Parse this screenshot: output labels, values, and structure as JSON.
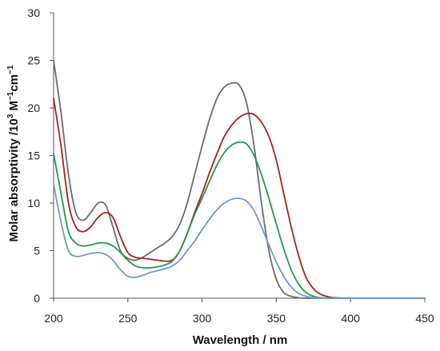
{
  "chart_data": {
    "type": "line",
    "xlabel": "Wavelength / nm",
    "ylabel_main": "Molar absorptivity /10",
    "ylabel_exp1": "3",
    "ylabel_unit1": " M",
    "ylabel_exp2": "−1",
    "ylabel_unit2": "cm",
    "ylabel_exp3": "−1",
    "xlim": [
      200,
      450
    ],
    "ylim": [
      0,
      30
    ],
    "xticks": [
      200,
      250,
      300,
      350,
      400,
      450
    ],
    "yticks": [
      0,
      5,
      10,
      15,
      20,
      25,
      30
    ],
    "series": [
      {
        "color": "#6b6b6b",
        "x": [
          200,
          205,
          210,
          215,
          220,
          225,
          230,
          235,
          240,
          245,
          250,
          255,
          260,
          265,
          270,
          275,
          280,
          285,
          290,
          295,
          300,
          305,
          310,
          315,
          320,
          325,
          330,
          335,
          340,
          345,
          350,
          355,
          360,
          365,
          370,
          375,
          380,
          390,
          400,
          420,
          450
        ],
        "y": [
          25.0,
          19.5,
          13.0,
          9.0,
          8.2,
          9.0,
          10.0,
          9.8,
          7.5,
          5.0,
          4.2,
          4.0,
          4.3,
          4.8,
          5.3,
          5.8,
          6.5,
          7.8,
          10.0,
          13.0,
          16.0,
          18.8,
          21.0,
          22.2,
          22.6,
          22.4,
          20.5,
          16.0,
          10.0,
          5.0,
          2.0,
          0.6,
          0.2,
          0.05,
          0.0,
          0.0,
          0.0,
          0.0,
          0.0,
          0.0,
          0.0
        ]
      },
      {
        "color": "#a8201a",
        "x": [
          200,
          205,
          210,
          215,
          220,
          225,
          230,
          235,
          240,
          245,
          250,
          255,
          260,
          265,
          270,
          275,
          280,
          285,
          290,
          295,
          300,
          305,
          310,
          315,
          320,
          325,
          330,
          335,
          340,
          345,
          350,
          355,
          360,
          365,
          370,
          375,
          380,
          385,
          390,
          400,
          420,
          450
        ],
        "y": [
          21.0,
          16.0,
          10.0,
          7.5,
          7.0,
          7.5,
          8.5,
          9.0,
          8.5,
          6.5,
          4.8,
          4.3,
          4.2,
          4.1,
          4.0,
          3.9,
          4.0,
          5.0,
          6.8,
          9.0,
          11.0,
          13.2,
          15.2,
          17.0,
          18.2,
          19.0,
          19.4,
          19.3,
          18.5,
          17.0,
          14.5,
          11.0,
          7.5,
          4.5,
          2.2,
          1.0,
          0.4,
          0.15,
          0.05,
          0.0,
          0.0,
          0.0
        ]
      },
      {
        "color": "#1f9a48",
        "x": [
          200,
          205,
          210,
          215,
          220,
          225,
          230,
          235,
          240,
          245,
          250,
          255,
          260,
          265,
          270,
          275,
          280,
          285,
          290,
          295,
          300,
          305,
          310,
          315,
          320,
          325,
          330,
          335,
          340,
          345,
          350,
          355,
          360,
          365,
          370,
          375,
          380,
          390,
          400,
          420,
          450
        ],
        "y": [
          15.2,
          11.0,
          7.0,
          5.8,
          5.5,
          5.6,
          5.8,
          5.8,
          5.5,
          4.8,
          4.0,
          3.4,
          3.2,
          3.2,
          3.3,
          3.5,
          3.9,
          5.0,
          6.8,
          8.8,
          10.5,
          12.3,
          14.0,
          15.3,
          16.1,
          16.4,
          16.2,
          15.0,
          13.0,
          10.5,
          7.8,
          5.2,
          3.0,
          1.5,
          0.6,
          0.2,
          0.05,
          0.0,
          0.0,
          0.0,
          0.0
        ]
      },
      {
        "color": "#6a9ad6",
        "x": [
          200,
          205,
          210,
          215,
          220,
          225,
          230,
          235,
          240,
          245,
          250,
          255,
          260,
          265,
          270,
          275,
          280,
          285,
          290,
          295,
          300,
          305,
          310,
          315,
          320,
          325,
          330,
          335,
          340,
          345,
          350,
          355,
          360,
          365,
          370,
          375,
          380,
          390,
          400,
          420,
          450
        ],
        "y": [
          12.0,
          8.0,
          5.0,
          4.4,
          4.5,
          4.7,
          4.8,
          4.6,
          4.0,
          3.0,
          2.3,
          2.2,
          2.4,
          2.7,
          2.9,
          3.1,
          3.4,
          4.0,
          5.0,
          6.0,
          7.2,
          8.3,
          9.3,
          10.0,
          10.4,
          10.5,
          10.2,
          9.2,
          7.5,
          5.6,
          3.8,
          2.3,
          1.2,
          0.5,
          0.2,
          0.05,
          0.0,
          0.0,
          0.0,
          0.0,
          0.0
        ]
      }
    ]
  }
}
